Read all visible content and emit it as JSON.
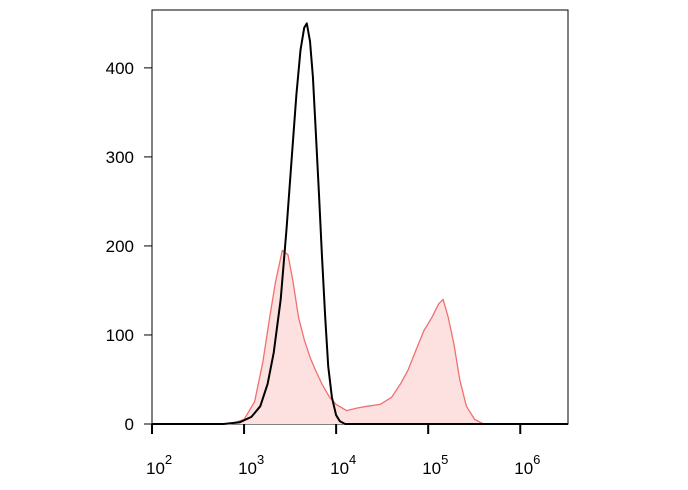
{
  "chart_data": {
    "type": "histogram-line",
    "xscale": "log",
    "xlim": [
      100,
      3300000
    ],
    "ylim": [
      0,
      465
    ],
    "xticks": [
      {
        "value": 100,
        "label": "10",
        "exponent": "2"
      },
      {
        "value": 1000,
        "label": "10",
        "exponent": "3"
      },
      {
        "value": 10000,
        "label": "10",
        "exponent": "4"
      },
      {
        "value": 100000,
        "label": "10",
        "exponent": "5"
      },
      {
        "value": 1000000,
        "label": "10",
        "exponent": "6"
      }
    ],
    "yticks": [
      0,
      100,
      200,
      300,
      400
    ],
    "series": [
      {
        "color": "#f07070",
        "fill": "#fde0e0",
        "x": [
          700,
          1000,
          1300,
          1600,
          1900,
          2200,
          2600,
          3000,
          3400,
          3900,
          4500,
          5200,
          6000,
          7000,
          8500,
          10000,
          13000,
          17000,
          22000,
          30000,
          40000,
          50000,
          60000,
          75000,
          90000,
          110000,
          130000,
          145000,
          165000,
          190000,
          220000,
          260000,
          320000,
          400000,
          3300000
        ],
        "values": [
          0,
          5,
          25,
          70,
          120,
          160,
          195,
          190,
          160,
          120,
          95,
          75,
          60,
          45,
          30,
          22,
          15,
          18,
          20,
          22,
          30,
          45,
          60,
          85,
          105,
          120,
          135,
          140,
          120,
          90,
          50,
          20,
          5,
          0,
          0
        ]
      },
      {
        "color": "#000000",
        "fill": "none",
        "x": [
          100,
          600,
          900,
          1200,
          1500,
          1800,
          2100,
          2500,
          2900,
          3300,
          3700,
          4100,
          4500,
          4800,
          5200,
          5600,
          6000,
          6500,
          7000,
          7600,
          8200,
          9000,
          10000,
          11000,
          12500,
          3300000
        ],
        "values": [
          0,
          0,
          2,
          8,
          20,
          45,
          80,
          140,
          220,
          300,
          370,
          420,
          445,
          450,
          430,
          390,
          330,
          260,
          190,
          120,
          65,
          30,
          10,
          3,
          0,
          0
        ]
      }
    ]
  }
}
